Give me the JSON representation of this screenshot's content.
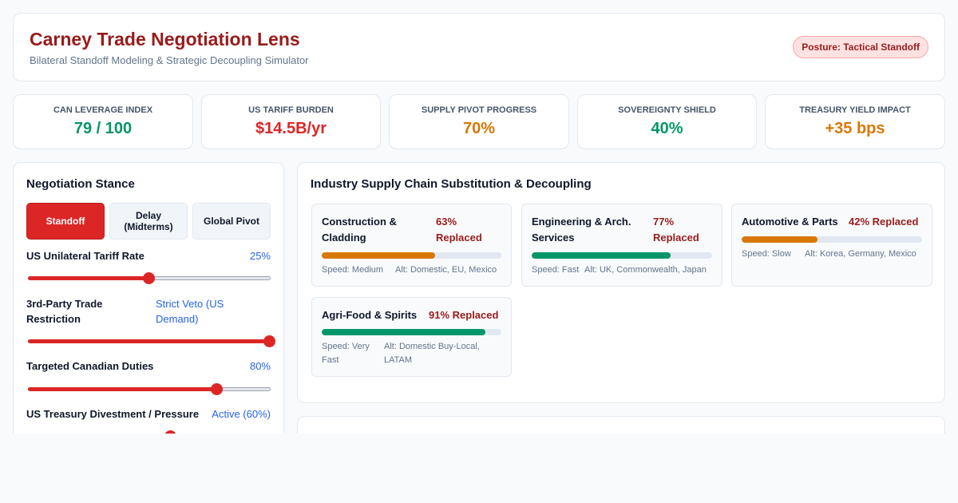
{
  "header": {
    "title": "Carney Trade Negotiation Lens",
    "subtitle": "Bilateral Standoff Modeling & Strategic Decoupling Simulator",
    "posture": "Posture: Tactical Standoff"
  },
  "kpis": [
    {
      "label": "CAN Leverage Index",
      "value": "79 / 100",
      "color": "#059669"
    },
    {
      "label": "US Tariff Burden",
      "value": "$14.5B/yr",
      "color": "#dc2626"
    },
    {
      "label": "Supply Pivot Progress",
      "value": "70%",
      "color": "#d97706"
    },
    {
      "label": "Sovereignty Shield",
      "value": "40%",
      "color": "#059669"
    },
    {
      "label": "Treasury Yield Impact",
      "value": "+35 bps",
      "color": "#d97706"
    }
  ],
  "stance": {
    "title": "Negotiation Stance",
    "options": [
      "Standoff",
      "Delay (Midterms)",
      "Global Pivot"
    ],
    "selected": "Standoff",
    "controls": [
      {
        "label": "US Unilateral Tariff Rate",
        "value": "25%",
        "level": 0.5
      },
      {
        "label": "3rd-Party Trade Restriction",
        "value": "Strict Veto (US Demand)",
        "level": 1.0
      },
      {
        "label": "Targeted Canadian Duties",
        "value": "80%",
        "level": 0.8
      },
      {
        "label": "US Treasury Divestment / Pressure",
        "value": "Active (60%)",
        "level": 0.6
      }
    ]
  },
  "supply": {
    "title": "Industry Supply Chain Substitution & Decoupling",
    "industries": [
      {
        "name": "Construction & Cladding",
        "replaced": "63% Replaced",
        "level": 0.63,
        "color": "#d97706",
        "speed": "Speed: Medium",
        "alt": "Alt: Domestic, EU, Mexico"
      },
      {
        "name": "Engineering & Arch. Services",
        "replaced": "77% Replaced",
        "level": 0.77,
        "color": "#059669",
        "speed": "Speed: Fast",
        "alt": "Alt: UK, Commonwealth, Japan"
      },
      {
        "name": "Automotive & Parts",
        "replaced": "42% Replaced",
        "level": 0.42,
        "color": "#d97706",
        "speed": "Speed: Slow",
        "alt": "Alt: Korea, Germany, Mexico"
      },
      {
        "name": "Agri-Food & Spirits",
        "replaced": "91% Replaced",
        "level": 0.91,
        "color": "#059669",
        "speed": "Speed: Very Fast",
        "alt": "Alt: Domestic Buy-Local, LATAM"
      }
    ]
  }
}
